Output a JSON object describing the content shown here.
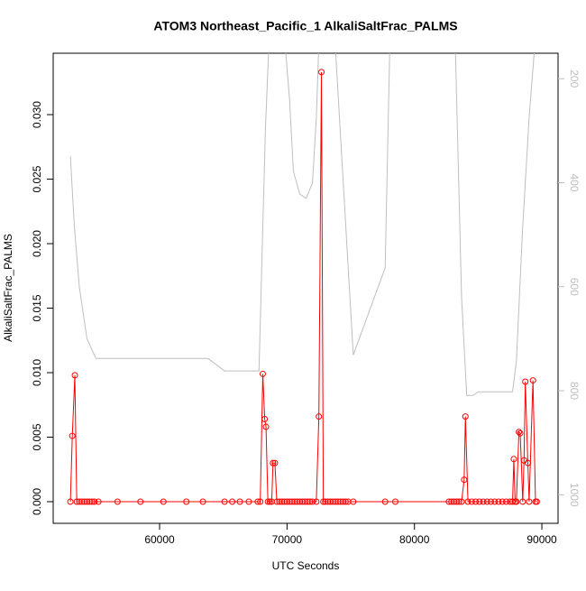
{
  "chart_data": {
    "type": "line",
    "title": "ATOM3 Northeast_Pacific_1 AlkaliSaltFrac_PALMS",
    "x_label": "UTC Seconds",
    "y_label": "AlkaliSaltFrac_PALMS",
    "xlim": [
      51650,
      91270
    ],
    "xticks": [
      60000,
      70000,
      80000,
      90000
    ],
    "ylim": [
      -0.00168,
      0.03476
    ],
    "yticks": [
      {
        "value": 0,
        "label": "0.000"
      },
      {
        "value": 0.005,
        "label": "0.005"
      },
      {
        "value": 0.01,
        "label": "0.010"
      },
      {
        "value": 0.015,
        "label": "0.015"
      },
      {
        "value": 0.02,
        "label": "0.020"
      },
      {
        "value": 0.025,
        "label": "0.025"
      },
      {
        "value": 0.03,
        "label": "0.030"
      }
    ],
    "y2lim": [
      1055,
      151
    ],
    "y2ticks": [
      200,
      400,
      600,
      800,
      1000
    ],
    "series": [
      {
        "color": "#ff0000",
        "markers": true,
        "x": [
          53000,
          53150,
          53350,
          53500,
          53700,
          53900,
          54100,
          54300,
          54500,
          54700,
          54900,
          55200,
          56700,
          58500,
          60300,
          62100,
          63400,
          65100,
          65700,
          66300,
          67000,
          67700,
          67900,
          68100,
          68250,
          68350,
          68500,
          68650,
          68800,
          68900,
          69050,
          69200,
          69400,
          69600,
          69800,
          70000,
          70200,
          70400,
          70600,
          70800,
          71000,
          71200,
          71400,
          71600,
          71800,
          72000,
          72300,
          72500,
          72700,
          72850,
          73000,
          73200,
          73400,
          73600,
          73800,
          74000,
          74200,
          74400,
          74600,
          74800,
          75200,
          77700,
          78500,
          82700,
          82900,
          83100,
          83300,
          83500,
          83700,
          83900,
          84000,
          84200,
          84500,
          84800,
          85100,
          85400,
          85700,
          86000,
          86300,
          86600,
          86900,
          87200,
          87500,
          87700,
          87800,
          87900,
          88000,
          88200,
          88300,
          88500,
          88600,
          88700,
          88900,
          89000,
          89300,
          89500,
          89600
        ],
        "values": [
          0,
          0.0051,
          0.0098,
          0,
          0,
          0,
          0,
          0,
          0,
          0,
          0,
          0,
          0,
          0,
          0,
          0,
          0,
          0,
          0,
          0,
          0,
          0,
          0,
          0.0099,
          0.0064,
          0.0058,
          0,
          0,
          0,
          0.003,
          0.003,
          0,
          0,
          0,
          0,
          0,
          0,
          0,
          0,
          0,
          0,
          0,
          0,
          0,
          0,
          0,
          0,
          0.0066,
          0.0333,
          0,
          0,
          0,
          0,
          0,
          0,
          0,
          0,
          0,
          0,
          0,
          0,
          0,
          0,
          0,
          0,
          0,
          0,
          0,
          0,
          0.0017,
          0.0066,
          0,
          0,
          0,
          0,
          0,
          0,
          0,
          0,
          0,
          0,
          0,
          0,
          0,
          0.0033,
          0,
          0,
          0.0054,
          0.0053,
          0,
          0.0032,
          0.0093,
          0.003,
          0,
          0.0094,
          0,
          0
        ]
      },
      {
        "color": "#bebebe",
        "axis": "y2",
        "markers": false,
        "x": [
          53000,
          53300,
          53700,
          54300,
          55000,
          63800,
          65100,
          67800,
          68300,
          68700,
          69300,
          69800,
          70200,
          70500,
          71000,
          71500,
          72000,
          72300,
          72600,
          73200,
          73700,
          75200,
          77700,
          78100,
          82800,
          83200,
          83700,
          84100,
          84600,
          85000,
          87700,
          88000,
          88500,
          89000,
          89400,
          89800
        ],
        "values": [
          349,
          480,
          600,
          700,
          738,
          738,
          762,
          762,
          300,
          60,
          50,
          120,
          240,
          378,
          422,
          430,
          400,
          275,
          60,
          40,
          100,
          731,
          564,
          100,
          60,
          130,
          621,
          809,
          809,
          802,
          802,
          743,
          483,
          275,
          150,
          60
        ]
      }
    ]
  }
}
